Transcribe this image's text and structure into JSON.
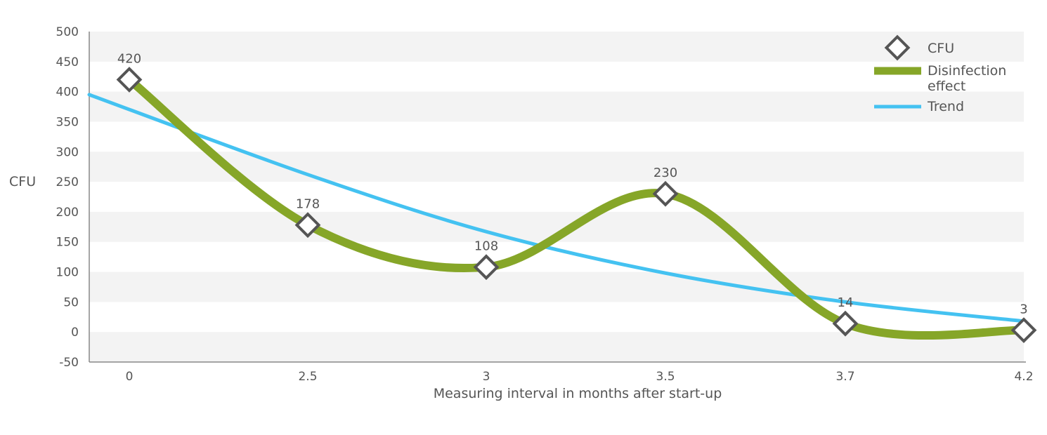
{
  "chart_data": {
    "type": "line",
    "categories": [
      "0",
      "2.5",
      "3",
      "3.5",
      "3.7",
      "4.2"
    ],
    "series": [
      {
        "name": "CFU",
        "values": [
          420,
          178,
          108,
          230,
          14,
          3
        ],
        "color": "#555555",
        "marker": "diamond"
      },
      {
        "name": "Disinfection effect",
        "values": [
          420,
          178,
          108,
          230,
          14,
          3
        ],
        "color": "#86a628",
        "style": "smooth-thick-line"
      },
      {
        "name": "Trend",
        "values": [
          395,
          262,
          167,
          98,
          50,
          18
        ],
        "color": "#44c2f1",
        "style": "exponential-trend-line"
      }
    ],
    "data_labels": [
      "420",
      "178",
      "108",
      "230",
      "14",
      "3"
    ],
    "xlabel": "Measuring interval in months after start-up",
    "ylabel": "CFU",
    "ylim": [
      -50,
      500
    ],
    "yticks": [
      "500",
      "450",
      "400",
      "350",
      "300",
      "250",
      "200",
      "150",
      "100",
      "50",
      "0",
      "-50"
    ],
    "grid": "alternating horizontal bands",
    "legend_position": "top-right",
    "legend": {
      "cfu": "CFU",
      "disinfection_line1": "Disinfection",
      "disinfection_line2": "effect",
      "trend": "Trend"
    }
  }
}
